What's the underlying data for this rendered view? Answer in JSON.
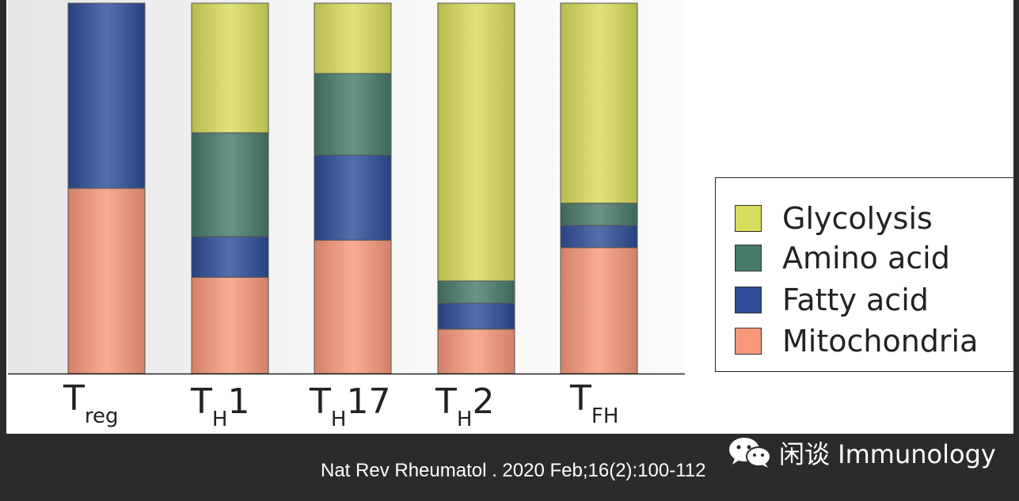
{
  "chart_data": {
    "type": "bar",
    "stacked": true,
    "categories": [
      {
        "base": "T",
        "sub": "reg",
        "suffix": ""
      },
      {
        "base": "T",
        "sub": "H",
        "suffix": "1"
      },
      {
        "base": "T",
        "sub": "H",
        "suffix": "17"
      },
      {
        "base": "T",
        "sub": "H",
        "suffix": "2"
      },
      {
        "base": "T",
        "sub": "FH",
        "suffix": ""
      }
    ],
    "series": [
      {
        "name": "Mitochondria",
        "color": "#f7987a",
        "values": [
          50,
          26,
          36,
          12,
          34
        ]
      },
      {
        "name": "Fatty acid",
        "color": "#2e4d96",
        "values": [
          50,
          11,
          23,
          7,
          6
        ]
      },
      {
        "name": "Amino acid",
        "color": "#467a6a",
        "values": [
          0,
          28,
          22,
          6,
          6
        ]
      },
      {
        "name": "Glycolysis",
        "color": "#d8dc5c",
        "values": [
          0,
          35,
          19,
          75,
          54
        ]
      }
    ],
    "ylim": [
      0,
      100
    ],
    "legend_position": "right",
    "legend_order": [
      "Glycolysis",
      "Amino acid",
      "Fatty acid",
      "Mitochondria"
    ]
  },
  "footer": {
    "citation": "Nat Rev Rheumatol . 2020 Feb;16(2):100-112",
    "watermark": "闲谈 Immunology",
    "watermark_icon": "wechat-icon"
  }
}
